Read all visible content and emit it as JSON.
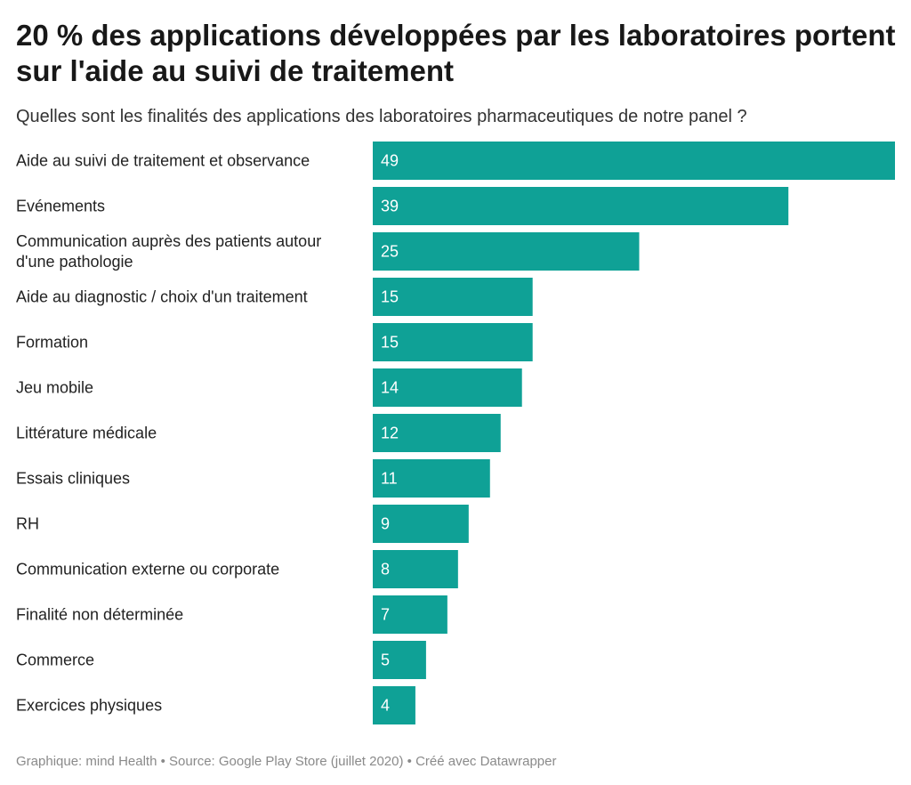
{
  "header": {
    "title": "20 % des applications développées par les laboratoires portent sur l'aide au suivi de traitement",
    "subtitle": "Quelles sont les finalités des applications des laboratoires pharmaceutiques de notre panel ?"
  },
  "footer": {
    "text": "Graphique: mind Health • Source: Google Play Store (juillet 2020) • Créé avec Datawrapper"
  },
  "chart_data": {
    "type": "bar",
    "orientation": "horizontal",
    "categories": [
      "Aide au suivi de traitement et observance",
      "Evénements",
      "Communication auprès des patients autour d'une pathologie",
      "Aide au diagnostic / choix d'un traitement",
      "Formation",
      "Jeu mobile",
      "Littérature médicale",
      "Essais cliniques",
      "RH",
      "Communication externe ou corporate",
      "Finalité non déterminée",
      "Commerce",
      "Exercices physiques"
    ],
    "values": [
      49,
      39,
      25,
      15,
      15,
      14,
      12,
      11,
      9,
      8,
      7,
      5,
      4
    ],
    "data_labels": true,
    "xlim": [
      0,
      49
    ],
    "grid": false,
    "legend": "none",
    "bar_color": "#0fa196",
    "label_color": "#ffffff"
  }
}
